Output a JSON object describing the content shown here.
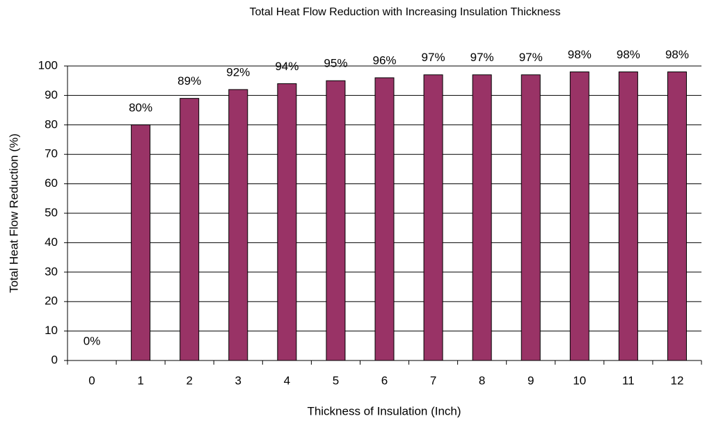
{
  "chart_data": {
    "type": "bar",
    "title": "Total Heat Flow Reduction with Increasing Insulation Thickness",
    "x_label": "Thickness of Insulation (Inch)",
    "y_label": "Total Heat Flow Reduction (%)",
    "categories": [
      "0",
      "1",
      "2",
      "3",
      "4",
      "5",
      "6",
      "7",
      "8",
      "9",
      "10",
      "11",
      "12"
    ],
    "values": [
      0,
      80,
      89,
      92,
      94,
      95,
      96,
      97,
      97,
      97,
      98,
      98,
      98
    ],
    "value_labels": [
      "0%",
      "80%",
      "89%",
      "92%",
      "94%",
      "95%",
      "96%",
      "97%",
      "97%",
      "97%",
      "98%",
      "98%",
      "98%"
    ],
    "color": "#993366",
    "ylim": [
      0,
      100
    ],
    "yticks": [
      0,
      10,
      20,
      30,
      40,
      50,
      60,
      70,
      80,
      90,
      100
    ],
    "grid": true
  }
}
